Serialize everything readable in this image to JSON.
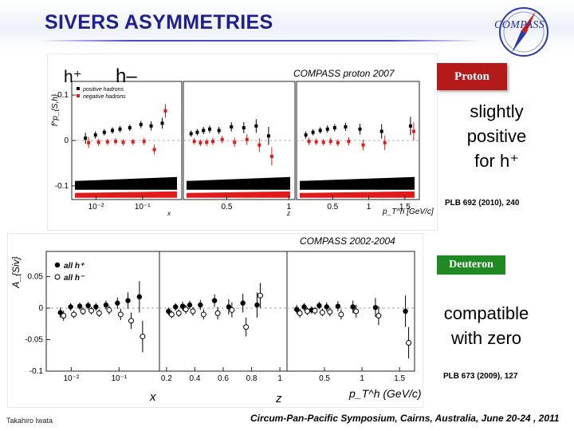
{
  "slide": {
    "title": "SIVERS ASYMMETRIES",
    "author": "Takahiro Iwata",
    "footer": "Circum-Pan-Pacific Symposium, Cairns, Australia, June 20-24 , 2011",
    "logo_text": "COMPASS"
  },
  "top_panel": {
    "label_h_plus": "h⁺",
    "label_h_minus": "h–",
    "caption": "COMPASS proton 2007",
    "tag": "Proton",
    "note_lines": [
      "slightly",
      "positive",
      "for  h⁺"
    ],
    "reference": "PLB 692 (2010), 240"
  },
  "bottom_panel": {
    "title": "COMPASS 2002-2004",
    "tag": "Deuteron",
    "note_lines": [
      "compatible",
      "with zero"
    ],
    "reference": "PLB 673 (2009), 127"
  },
  "colors": {
    "title": "#1f1f8f",
    "positive": "#000000",
    "negative": "#e21a1a",
    "proton_tag": "#b51a1a",
    "deuteron_tag": "#1f8a22"
  },
  "chart_data": [
    {
      "type": "scatter",
      "title": "",
      "ylabel": "f^p_{S,h}",
      "legend": [
        "positive hadrons",
        "negative hadrons"
      ],
      "legend_position": "top-left",
      "ylim": [
        -0.13,
        0.13
      ],
      "y_ticks": [
        "0.1",
        "0",
        "-0.1"
      ],
      "subplots": [
        {
          "xlabel": "x",
          "x_scale": "log",
          "x_ticks": [
            "10⁻²",
            "10⁻¹"
          ],
          "xlim": [
            0.003,
            0.7
          ],
          "x": [
            0.0064,
            0.0105,
            0.0163,
            0.0244,
            0.0355,
            0.0576,
            0.1,
            0.166,
            0.288
          ],
          "series": [
            {
              "name": "positive hadrons",
              "values": [
                0.005,
                0.012,
                0.018,
                0.022,
                0.025,
                0.028,
                0.035,
                0.032,
                0.038
              ],
              "errors": [
                0.012,
                0.008,
                0.007,
                0.007,
                0.007,
                0.007,
                0.008,
                0.01,
                0.012
              ]
            },
            {
              "name": "negative hadrons",
              "values": [
                -0.005,
                -0.004,
                -0.003,
                -0.002,
                -0.004,
                -0.003,
                -0.002,
                -0.02,
                0.065
              ],
              "errors": [
                0.012,
                0.008,
                0.007,
                0.007,
                0.007,
                0.007,
                0.008,
                0.011,
                0.015
              ]
            }
          ]
        },
        {
          "xlabel": "z",
          "x_scale": "linear",
          "x_ticks": [
            "0.5",
            "1"
          ],
          "xlim": [
            0.15,
            1.05
          ],
          "x": [
            0.225,
            0.275,
            0.325,
            0.375,
            0.45,
            0.55,
            0.65,
            0.75,
            0.85
          ],
          "series": [
            {
              "name": "positive hadrons",
              "values": [
                0.015,
                0.018,
                0.022,
                0.025,
                0.022,
                0.03,
                0.028,
                0.032,
                0.01
              ],
              "errors": [
                0.007,
                0.007,
                0.008,
                0.008,
                0.008,
                0.01,
                0.012,
                0.015,
                0.02
              ]
            },
            {
              "name": "negative hadrons",
              "values": [
                -0.002,
                -0.005,
                -0.004,
                -0.002,
                0.002,
                -0.004,
                0.002,
                -0.01,
                -0.035
              ],
              "errors": [
                0.007,
                0.007,
                0.008,
                0.008,
                0.008,
                0.01,
                0.012,
                0.015,
                0.02
              ]
            }
          ]
        },
        {
          "xlabel": "p_T^h [GeV/c]",
          "x_scale": "linear",
          "x_ticks": [
            "0.5",
            "1",
            "1.5"
          ],
          "xlim": [
            0.0,
            1.7
          ],
          "x": [
            0.15,
            0.25,
            0.35,
            0.45,
            0.55,
            0.7,
            0.9,
            1.2,
            1.6
          ],
          "series": [
            {
              "name": "positive hadrons",
              "values": [
                0.012,
                0.018,
                0.022,
                0.025,
                0.028,
                0.03,
                0.025,
                0.02,
                0.032
              ],
              "errors": [
                0.008,
                0.007,
                0.007,
                0.008,
                0.008,
                0.009,
                0.012,
                0.016,
                0.02
              ]
            },
            {
              "name": "negative hadrons",
              "values": [
                -0.002,
                -0.003,
                -0.004,
                -0.002,
                -0.005,
                -0.002,
                -0.01,
                -0.005,
                0.02
              ],
              "errors": [
                0.008,
                0.007,
                0.007,
                0.008,
                0.008,
                0.009,
                0.012,
                0.016,
                0.02
              ]
            }
          ]
        }
      ]
    },
    {
      "type": "scatter",
      "title": "COMPASS 2002-2004",
      "ylabel": "A_{Siv}",
      "legend": [
        "all h⁺",
        "all h⁻"
      ],
      "legend_position": "top-left",
      "ylim": [
        -0.1,
        0.09
      ],
      "y_ticks": [
        "0.05",
        "0",
        "-0.05",
        "-0.1"
      ],
      "subplots": [
        {
          "xlabel": "x",
          "x_scale": "log",
          "x_ticks": [
            "10⁻²",
            "10⁻¹"
          ],
          "xlim": [
            0.003,
            0.7
          ],
          "x": [
            0.0064,
            0.0105,
            0.0163,
            0.0244,
            0.0355,
            0.0576,
            0.1,
            0.166,
            0.288
          ],
          "series": [
            {
              "name": "all h⁺",
              "values": [
                -0.007,
                0.002,
                0.003,
                0.004,
                0.002,
                0.005,
                0.008,
                0.012,
                0.018
              ],
              "errors": [
                0.008,
                0.006,
                0.006,
                0.006,
                0.006,
                0.007,
                0.009,
                0.013,
                0.025
              ]
            },
            {
              "name": "all h⁻",
              "values": [
                -0.012,
                -0.01,
                -0.005,
                -0.004,
                -0.008,
                -0.003,
                -0.01,
                -0.02,
                -0.045
              ],
              "errors": [
                0.008,
                0.006,
                0.006,
                0.006,
                0.006,
                0.007,
                0.009,
                0.013,
                0.025
              ]
            }
          ]
        },
        {
          "xlabel": "z",
          "x_scale": "linear",
          "x_ticks": [
            "0.2",
            "0.4",
            "0.6",
            "0.8",
            "1"
          ],
          "xlim": [
            0.15,
            1.05
          ],
          "x": [
            0.225,
            0.275,
            0.325,
            0.375,
            0.45,
            0.55,
            0.65,
            0.75,
            0.85
          ],
          "series": [
            {
              "name": "all h⁺",
              "values": [
                -0.005,
                0.002,
                0.003,
                0.005,
                0.005,
                0.012,
                0.002,
                0.008,
                0.005
              ],
              "errors": [
                0.006,
                0.006,
                0.007,
                0.007,
                0.008,
                0.01,
                0.012,
                0.015,
                0.02
              ]
            },
            {
              "name": "all h⁻",
              "values": [
                -0.01,
                -0.008,
                -0.002,
                -0.005,
                -0.01,
                -0.008,
                -0.003,
                -0.03,
                0.02
              ],
              "errors": [
                0.006,
                0.006,
                0.007,
                0.007,
                0.008,
                0.01,
                0.012,
                0.015,
                0.02
              ]
            }
          ]
        },
        {
          "xlabel": "p_T^h (GeV/c)",
          "x_scale": "linear",
          "x_ticks": [
            "0.5",
            "1",
            "1.5"
          ],
          "xlim": [
            0.0,
            1.7
          ],
          "x": [
            0.15,
            0.25,
            0.35,
            0.45,
            0.55,
            0.7,
            0.9,
            1.2,
            1.6
          ],
          "series": [
            {
              "name": "all h⁺",
              "values": [
                -0.002,
                0.002,
                -0.003,
                0.004,
                0.002,
                0.003,
                0.002,
                0.001,
                -0.005
              ],
              "errors": [
                0.007,
                0.006,
                0.006,
                0.006,
                0.007,
                0.008,
                0.01,
                0.015,
                0.025
              ]
            },
            {
              "name": "all h⁻",
              "values": [
                -0.008,
                -0.005,
                -0.004,
                -0.007,
                -0.006,
                -0.01,
                -0.005,
                -0.012,
                -0.055
              ],
              "errors": [
                0.007,
                0.006,
                0.006,
                0.006,
                0.007,
                0.008,
                0.01,
                0.015,
                0.025
              ]
            }
          ]
        }
      ]
    }
  ]
}
